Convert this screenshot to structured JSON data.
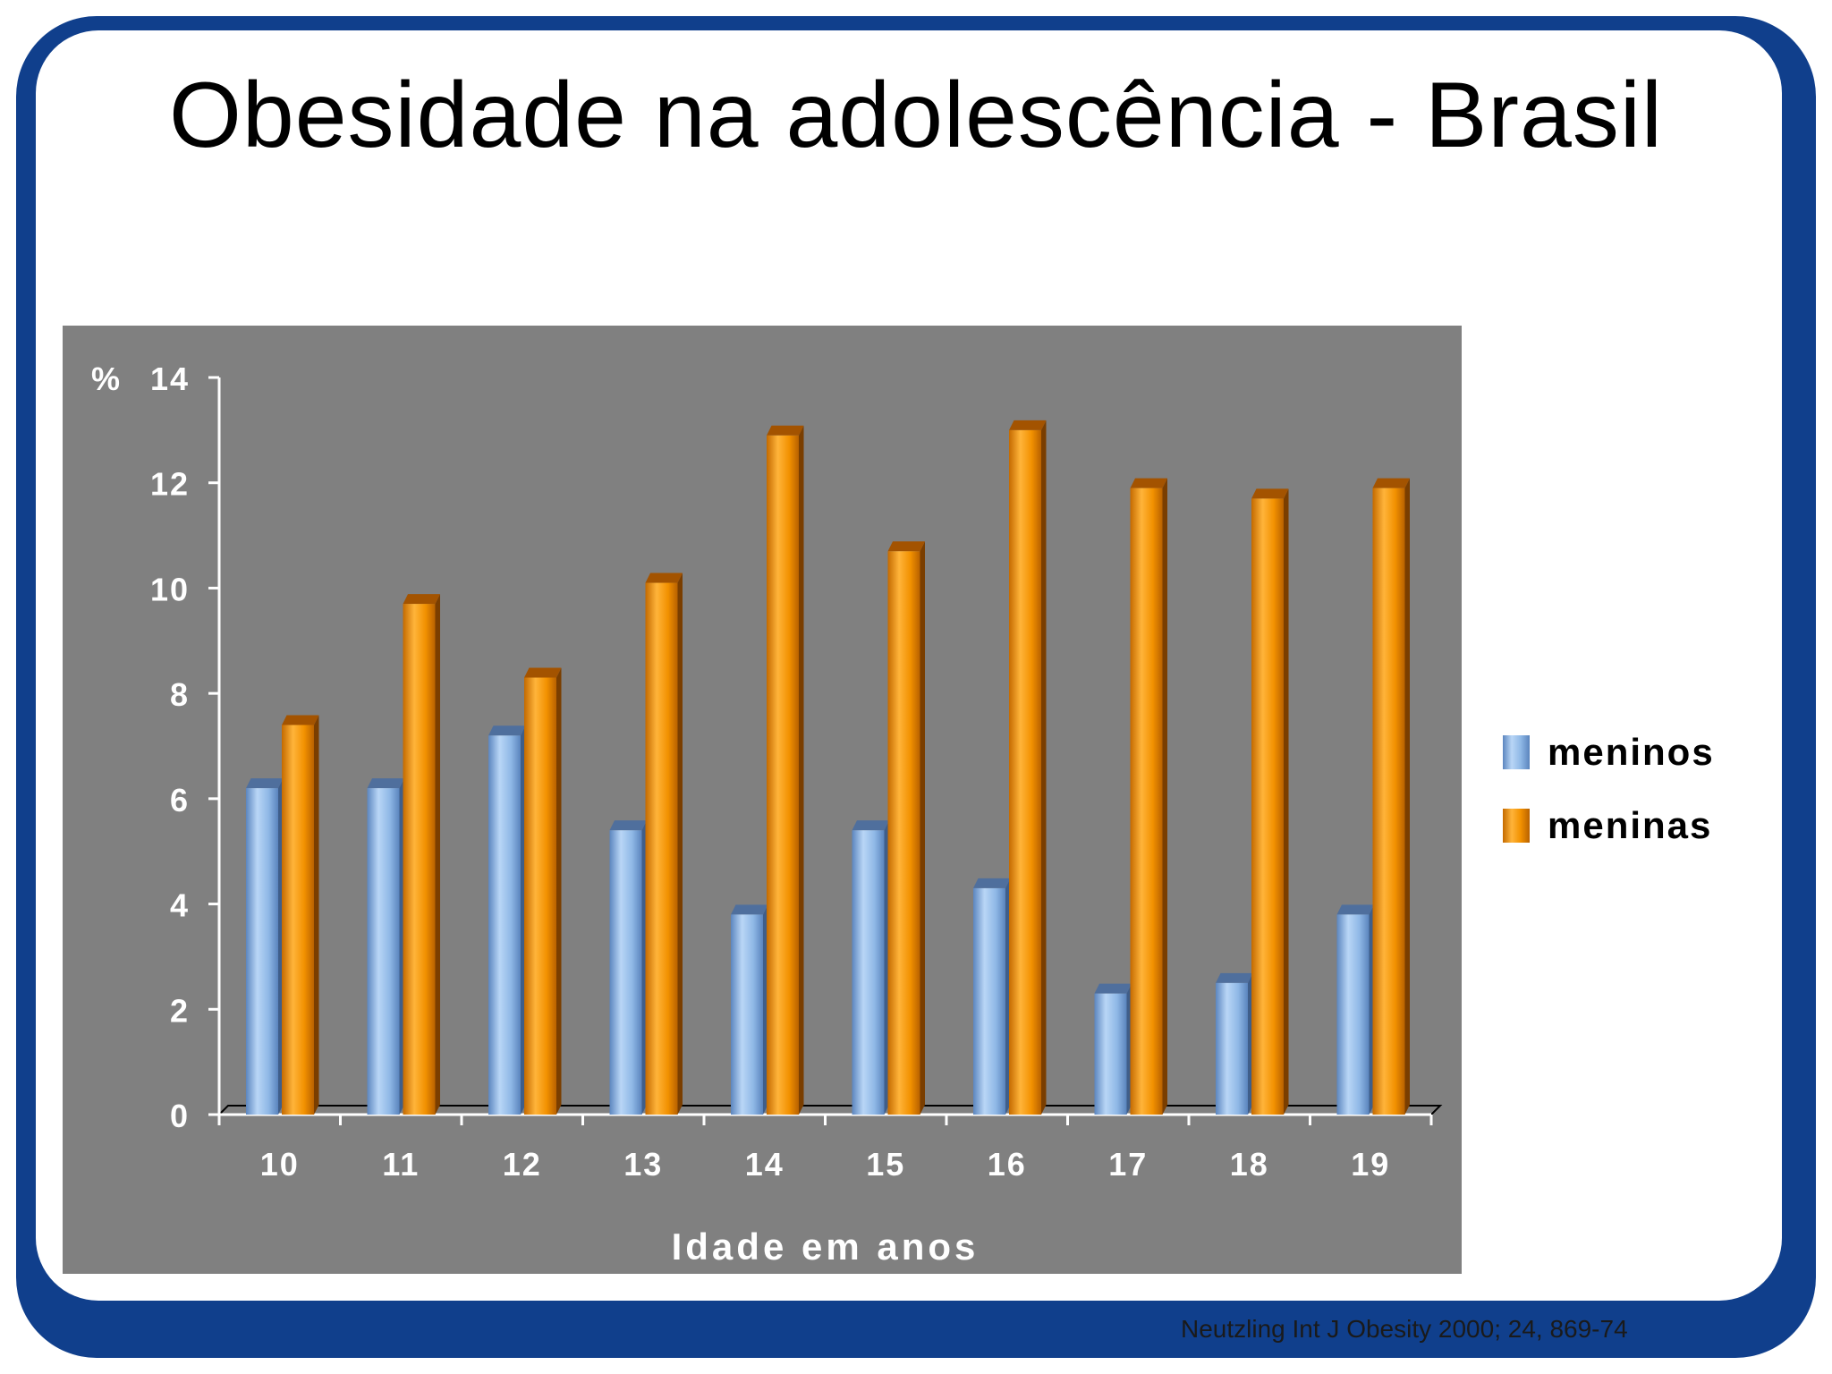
{
  "title": "Obesidade na adolescência - Brasil",
  "citation": "Neutzling Int J Obesity 2000; 24, 869-74",
  "colors": {
    "frame": "#103f8c",
    "plot_background": "#808080",
    "meninos": "#8fb8e6",
    "meninas": "#f29100"
  },
  "chart_data": {
    "type": "bar",
    "title": "",
    "ylabel": "%",
    "xlabel": "Idade em anos",
    "categories": [
      "10",
      "11",
      "12",
      "13",
      "14",
      "15",
      "16",
      "17",
      "18",
      "19"
    ],
    "yticks": [
      "0",
      "2",
      "4",
      "6",
      "8",
      "10",
      "12",
      "14"
    ],
    "ylim": [
      0,
      14
    ],
    "grid": false,
    "legend_position": "right",
    "series": [
      {
        "name": "meninos",
        "values": [
          6.2,
          6.2,
          7.2,
          5.4,
          3.8,
          5.4,
          4.3,
          2.3,
          2.5,
          3.8
        ]
      },
      {
        "name": "meninas",
        "values": [
          7.4,
          9.7,
          8.3,
          10.1,
          12.9,
          10.7,
          13.0,
          11.9,
          11.7,
          11.9
        ]
      }
    ]
  }
}
